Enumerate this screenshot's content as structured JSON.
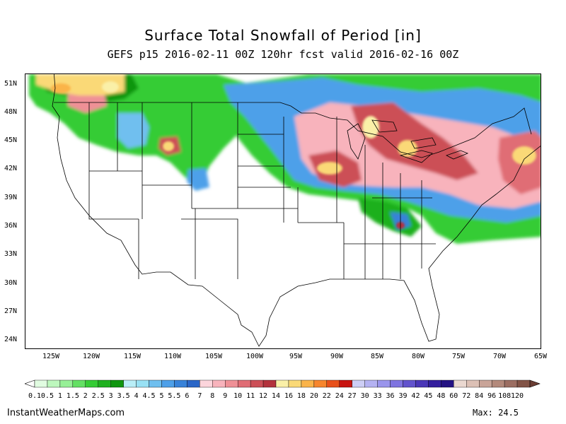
{
  "title": "Surface Total Snowfall of Period [in]",
  "subtitle": "GEFS p15 2016-02-11 00Z 120hr fcst valid 2016-02-16 00Z",
  "lat_labels": [
    "51N",
    "48N",
    "45N",
    "42N",
    "39N",
    "36N",
    "33N",
    "30N",
    "27N",
    "24N"
  ],
  "lon_labels": [
    "125W",
    "120W",
    "115W",
    "110W",
    "105W",
    "100W",
    "95W",
    "90W",
    "85W",
    "80W",
    "75W",
    "70W",
    "65W"
  ],
  "legend": {
    "labels": [
      "0.1",
      "0.5",
      "1",
      "1.5",
      "2",
      "2.5",
      "3",
      "3.5",
      "4",
      "4.5",
      "5",
      "5.5",
      "6",
      "7",
      "8",
      "9",
      "10",
      "11",
      "12",
      "14",
      "16",
      "18",
      "20",
      "22",
      "24",
      "27",
      "30",
      "33",
      "36",
      "39",
      "42",
      "45",
      "48",
      "60",
      "72",
      "84",
      "96",
      "108",
      "120"
    ],
    "colors": [
      "#e1fce1",
      "#bdf7bd",
      "#96f096",
      "#63e063",
      "#35cc35",
      "#1fb01f",
      "#0f960f",
      "#b9eef7",
      "#98e1f4",
      "#6fbfef",
      "#4ea0e9",
      "#3782d9",
      "#2a66c7",
      "#fcd5dc",
      "#f8b3bc",
      "#ef9096",
      "#e06d75",
      "#cc4f57",
      "#b3323c",
      "#faf0a8",
      "#fad977",
      "#fab44a",
      "#f7862d",
      "#e8501a",
      "#c8140f",
      "#cdcef5",
      "#b4b2f2",
      "#9a95ec",
      "#7f74e0",
      "#6253cd",
      "#4a36b7",
      "#331e9e",
      "#241283",
      "#ead8d0",
      "#dcc0b5",
      "#c9a498",
      "#b3897b",
      "#9c6e62",
      "#825346"
    ],
    "under_color": "#ffffff",
    "over_color": "#6a3d33"
  },
  "footer": {
    "site": "InstantWeatherMaps.com",
    "max_label": "Max:  24.5"
  }
}
